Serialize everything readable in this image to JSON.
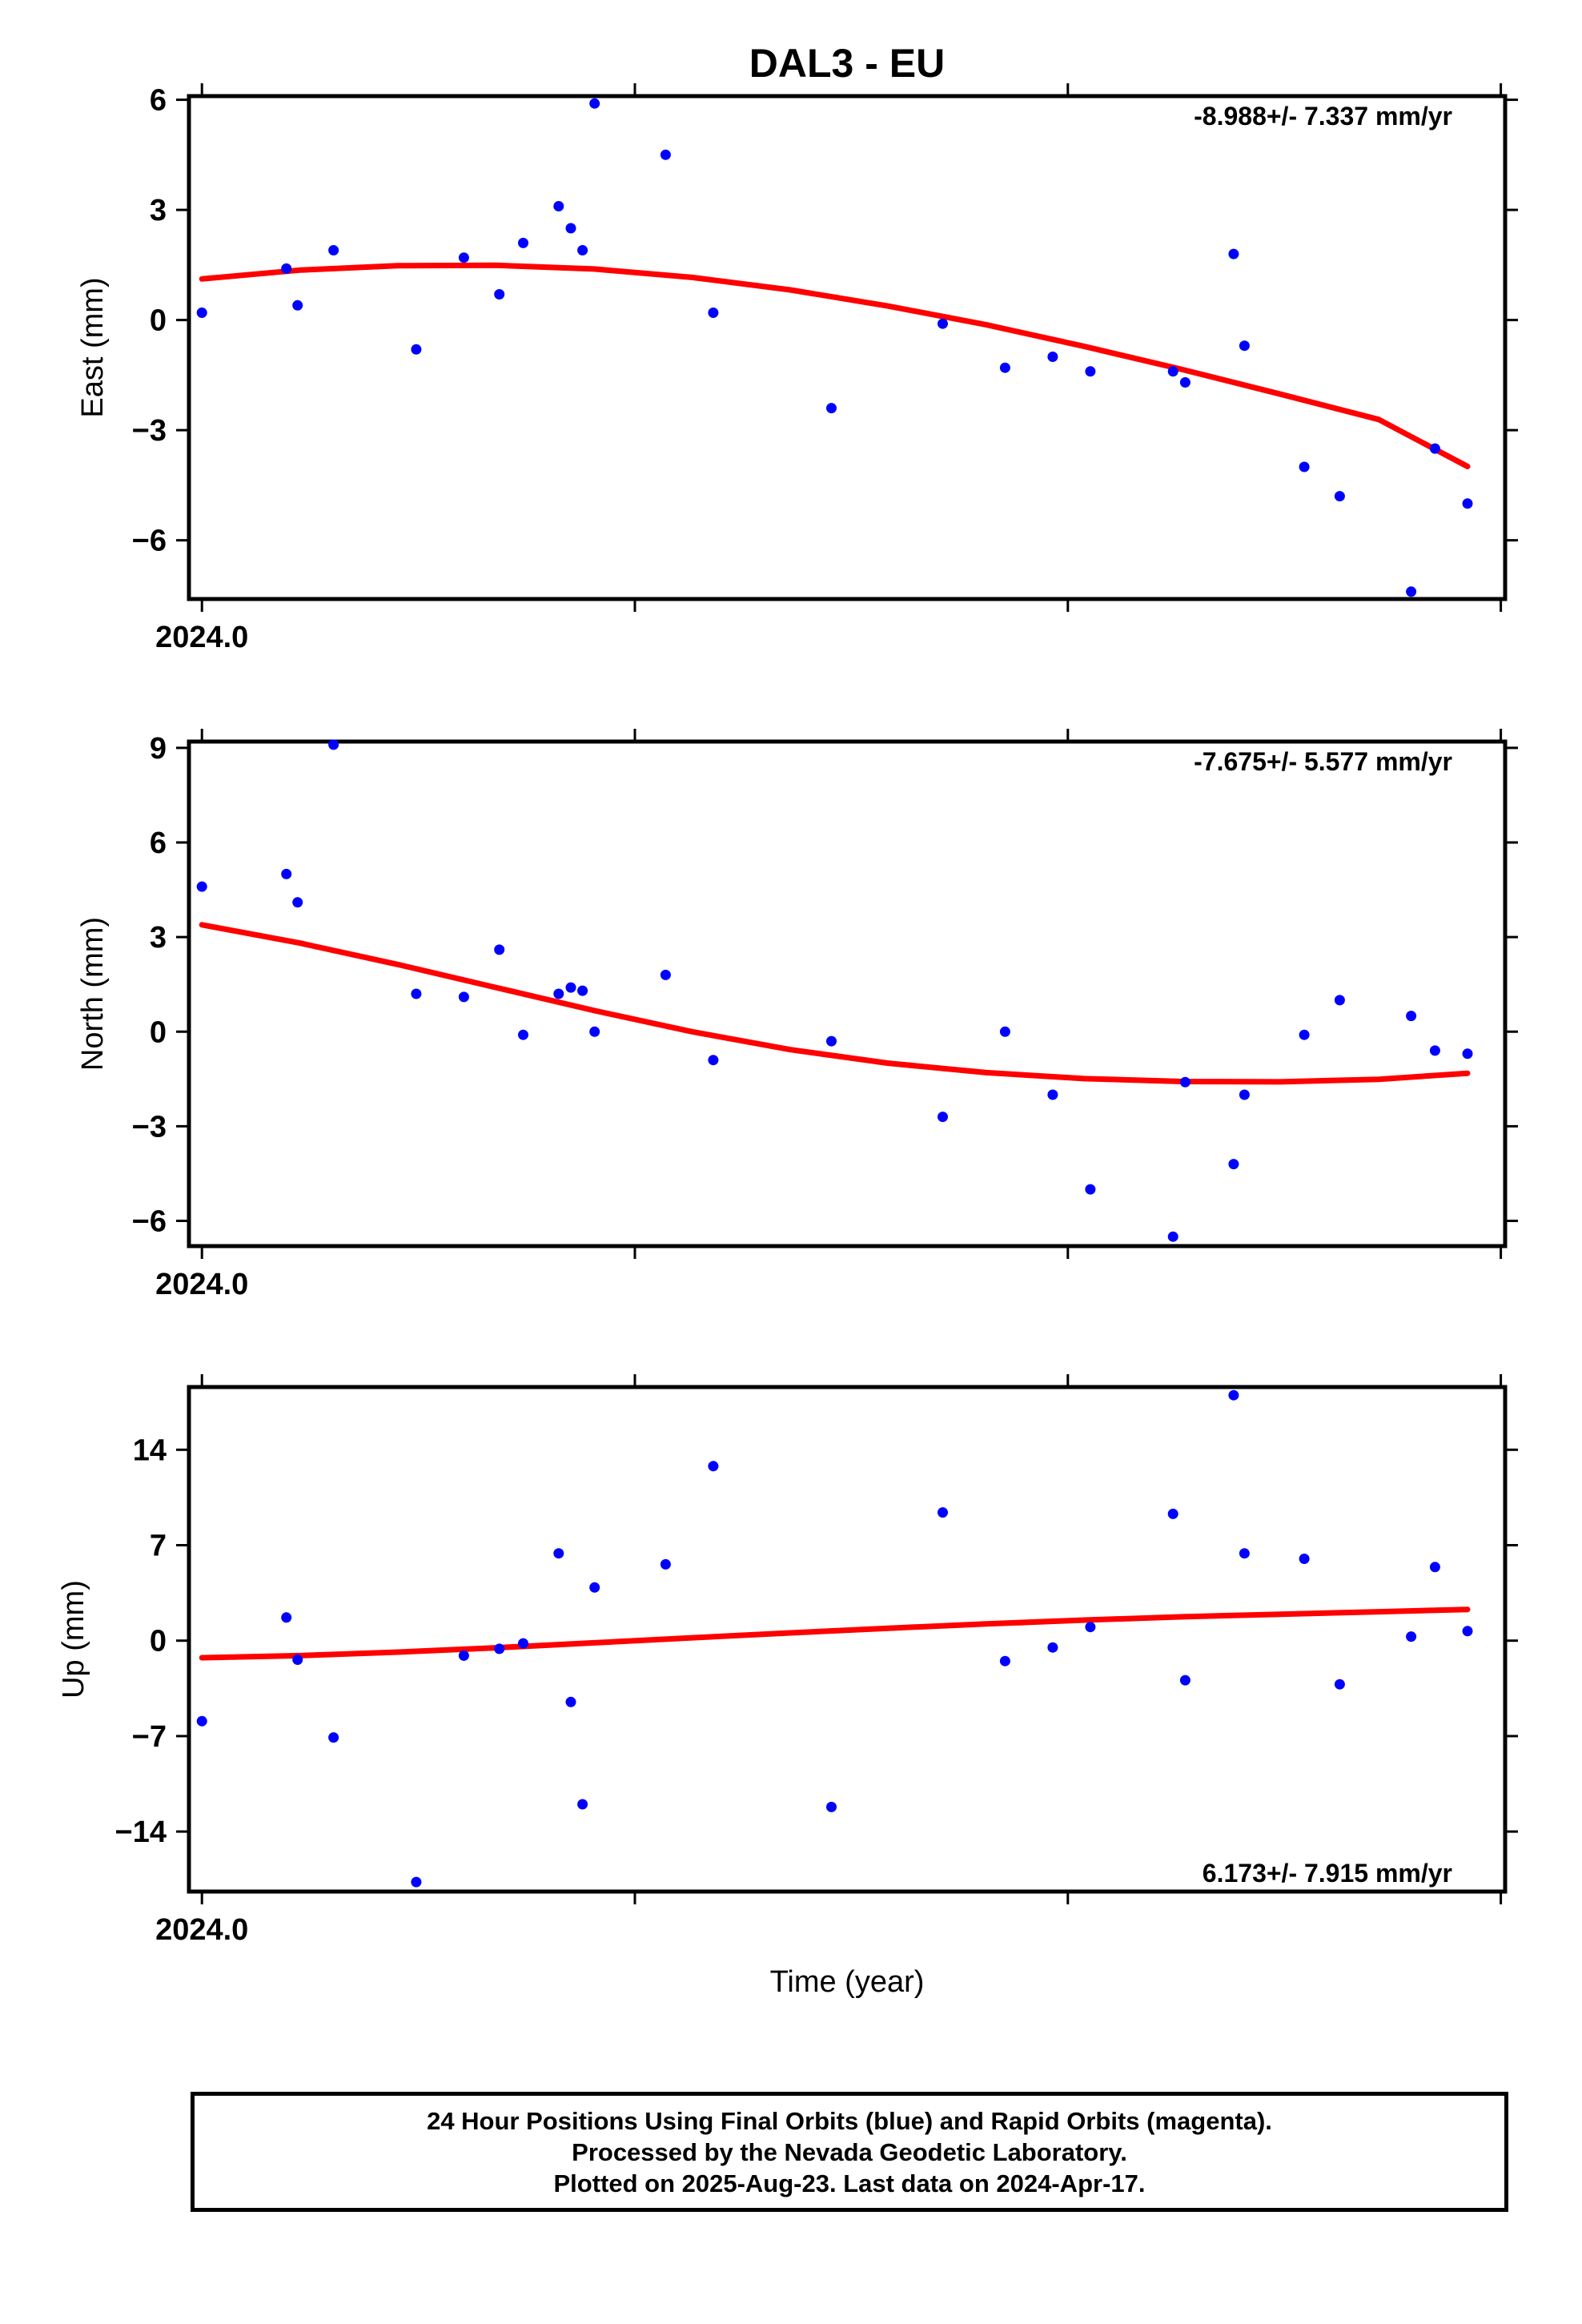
{
  "title": "DAL3 - EU",
  "xlabel": "Time (year)",
  "x_tick_label": "2024.0",
  "colors": {
    "points": "#0000ff",
    "fit": "#ff0000",
    "axes": "#000000"
  },
  "chart_data": [
    {
      "type": "scatter",
      "component": "East",
      "ylabel": "East (mm)",
      "rate": "-8.988+/- 7.337 mm/yr",
      "rate_position": "top-right",
      "ylim": [
        -7.6,
        6.1
      ],
      "yticks": [
        6,
        3,
        0,
        -3,
        -6
      ],
      "ytick_labels": [
        "6",
        "3",
        "0",
        "−3",
        "−6"
      ],
      "xlim": [
        2023.997,
        2024.301
      ],
      "x": [
        2024.0,
        2024.0195,
        2024.0221,
        2024.0304,
        2024.0495,
        2024.0605,
        2024.0687,
        2024.0742,
        2024.0824,
        2024.0852,
        2024.0879,
        2024.0907,
        2024.1071,
        2024.1181,
        2024.1454,
        2024.1711,
        2024.1855,
        2024.1965,
        2024.2052,
        2024.2243,
        2024.2271,
        2024.2383,
        2024.2408,
        2024.2546,
        2024.2628,
        2024.2793,
        2024.2848,
        2024.2923
      ],
      "y": [
        0.2,
        1.4,
        0.4,
        1.9,
        -0.8,
        1.7,
        0.7,
        2.1,
        3.1,
        2.5,
        1.9,
        5.9,
        4.5,
        0.2,
        -2.4,
        -0.1,
        -1.3,
        -1.0,
        -1.4,
        -1.4,
        -1.7,
        1.8,
        -0.7,
        -4.0,
        -4.8,
        -7.4,
        -3.5,
        -5.0
      ],
      "fit": {
        "x": [
          2024.0,
          2024.0226,
          2024.0453,
          2024.0679,
          2024.0906,
          2024.1132,
          2024.1359,
          2024.1585,
          2024.1812,
          2024.2038,
          2024.2265,
          2024.2491,
          2024.2718,
          2024.2923
        ],
        "y": [
          1.12,
          1.36,
          1.48,
          1.49,
          1.39,
          1.16,
          0.82,
          0.38,
          -0.13,
          -0.72,
          -1.35,
          -2.02,
          -2.71,
          -3.99
        ]
      }
    },
    {
      "type": "scatter",
      "component": "North",
      "ylabel": "North (mm)",
      "rate": "-7.675+/- 5.577 mm/yr",
      "rate_position": "top-right",
      "ylim": [
        -6.8,
        9.2
      ],
      "yticks": [
        9,
        6,
        3,
        0,
        -3,
        -6
      ],
      "ytick_labels": [
        "9",
        "6",
        "3",
        "0",
        "−3",
        "−6"
      ],
      "xlim": [
        2023.997,
        2024.301
      ],
      "x": [
        2024.0,
        2024.0195,
        2024.0221,
        2024.0304,
        2024.0495,
        2024.0605,
        2024.0687,
        2024.0742,
        2024.0824,
        2024.0852,
        2024.0879,
        2024.0907,
        2024.1071,
        2024.1181,
        2024.1454,
        2024.1711,
        2024.1855,
        2024.1965,
        2024.2052,
        2024.2243,
        2024.2271,
        2024.2383,
        2024.2408,
        2024.2546,
        2024.2628,
        2024.2793,
        2024.2848,
        2024.2923
      ],
      "y": [
        4.6,
        5.0,
        4.1,
        9.1,
        1.2,
        1.1,
        2.6,
        -0.1,
        1.2,
        1.4,
        1.3,
        0.0,
        1.8,
        -0.9,
        -0.3,
        -2.7,
        0.0,
        -2.0,
        -5.0,
        -6.5,
        -1.6,
        -4.2,
        -2.0,
        -0.1,
        1.0,
        0.5,
        -0.6,
        -0.7
      ],
      "fit": {
        "x": [
          2024.0,
          2024.0226,
          2024.0453,
          2024.0679,
          2024.0906,
          2024.1132,
          2024.1359,
          2024.1585,
          2024.1812,
          2024.2038,
          2024.2265,
          2024.2491,
          2024.2718,
          2024.2923
        ],
        "y": [
          3.39,
          2.81,
          2.13,
          1.4,
          0.67,
          0.0,
          -0.57,
          -1.0,
          -1.3,
          -1.49,
          -1.58,
          -1.59,
          -1.51,
          -1.32
        ]
      }
    },
    {
      "type": "scatter",
      "component": "Up",
      "ylabel": "Up (mm)",
      "rate": "6.173+/- 7.915 mm/yr",
      "rate_position": "bottom-right",
      "ylim": [
        -18.4,
        18.6
      ],
      "yticks": [
        14,
        7,
        0,
        -7,
        -14
      ],
      "ytick_labels": [
        "14",
        "7",
        "0",
        "−7",
        "−14"
      ],
      "xlim": [
        2023.997,
        2024.301
      ],
      "x": [
        2024.0,
        2024.0195,
        2024.0221,
        2024.0304,
        2024.0495,
        2024.0605,
        2024.0687,
        2024.0742,
        2024.0824,
        2024.0852,
        2024.0879,
        2024.0907,
        2024.1071,
        2024.1181,
        2024.1454,
        2024.1711,
        2024.1855,
        2024.1965,
        2024.2052,
        2024.2243,
        2024.2271,
        2024.2383,
        2024.2408,
        2024.2546,
        2024.2628,
        2024.2793,
        2024.2848,
        2024.2923
      ],
      "y": [
        -5.9,
        1.7,
        -1.4,
        -7.1,
        -17.7,
        -1.1,
        -0.6,
        -0.2,
        6.4,
        -4.5,
        -12.0,
        3.9,
        5.6,
        12.8,
        -12.2,
        9.4,
        -1.5,
        -0.5,
        1.0,
        9.3,
        -2.9,
        18.0,
        6.4,
        6.0,
        -3.2,
        0.3,
        5.4,
        0.7
      ],
      "fit": {
        "x": [
          2024.0,
          2024.0226,
          2024.0453,
          2024.0679,
          2024.0906,
          2024.1132,
          2024.1359,
          2024.1585,
          2024.1812,
          2024.2038,
          2024.2265,
          2024.2491,
          2024.2718,
          2024.2923
        ],
        "y": [
          -1.25,
          -1.1,
          -0.84,
          -0.52,
          -0.16,
          0.21,
          0.57,
          0.91,
          1.23,
          1.51,
          1.75,
          1.94,
          2.12,
          2.29
        ]
      }
    }
  ],
  "caption": {
    "line1": "24 Hour Positions Using Final Orbits (blue) and Rapid Orbits (magenta).",
    "line2": "Processed by the Nevada Geodetic Laboratory.",
    "line3": "Plotted on 2025-Aug-23. Last data on 2024-Apr-17."
  }
}
